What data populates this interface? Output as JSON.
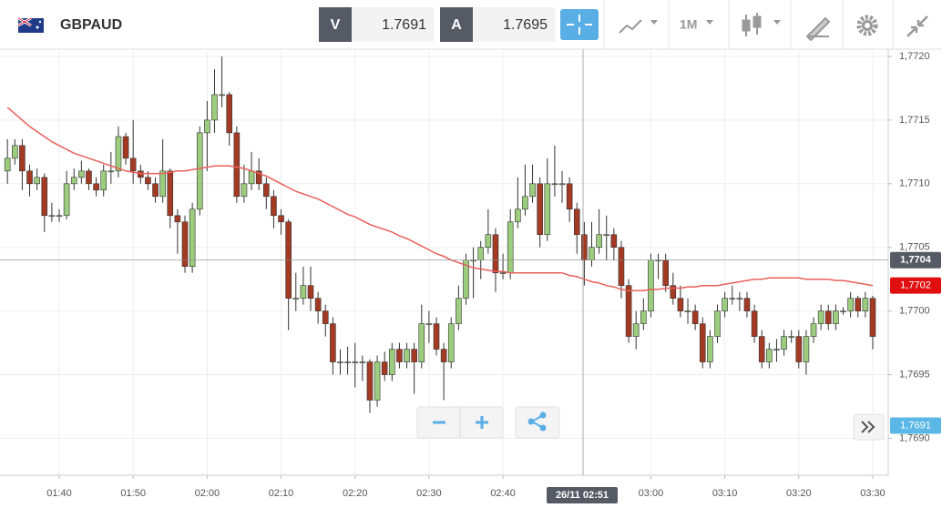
{
  "toolbar": {
    "symbol": "GBPAUD",
    "bid_label": "V",
    "bid": 1.7691,
    "ask_label": "A",
    "ask": 1.7695,
    "timeframe": "1M"
  },
  "chart_data": {
    "type": "candlestick",
    "categories": [
      null,
      null,
      null,
      null,
      null,
      null,
      null,
      "01:40",
      null,
      null,
      null,
      null,
      null,
      null,
      null,
      null,
      null,
      "01:50",
      null,
      null,
      null,
      null,
      null,
      null,
      null,
      null,
      null,
      "02:00",
      null,
      null,
      null,
      null,
      null,
      null,
      null,
      null,
      null,
      "02:10",
      null,
      null,
      null,
      null,
      null,
      null,
      null,
      null,
      null,
      "02:20",
      null,
      null,
      null,
      null,
      null,
      null,
      null,
      null,
      null,
      "02:30",
      null,
      null,
      null,
      null,
      null,
      null,
      null,
      null,
      null,
      "02:40",
      null,
      null,
      null,
      null,
      null,
      null,
      null,
      null,
      null,
      null,
      null,
      null,
      null,
      null,
      null,
      null,
      null,
      null,
      null,
      "03:00",
      null,
      null,
      null,
      null,
      null,
      null,
      null,
      null,
      null,
      "03:10",
      null,
      null,
      null,
      null,
      null,
      null,
      null,
      null,
      null,
      "03:20",
      null,
      null,
      null,
      null,
      null,
      null,
      null,
      null,
      null,
      "03:30"
    ],
    "ohlc": [
      [
        1.7711,
        1.77135,
        1.771,
        1.7712
      ],
      [
        1.7712,
        1.77135,
        1.77115,
        1.7713
      ],
      [
        1.7713,
        1.77135,
        1.77095,
        1.7711
      ],
      [
        1.7711,
        1.77115,
        1.7709,
        1.771
      ],
      [
        1.771,
        1.77112,
        1.77095,
        1.77105
      ],
      [
        1.77105,
        1.77108,
        1.77062,
        1.77075
      ],
      [
        1.77075,
        1.77085,
        1.7707,
        1.77075
      ],
      [
        1.77075,
        1.7708,
        1.7707,
        1.77075
      ],
      [
        1.77075,
        1.7711,
        1.77072,
        1.771
      ],
      [
        1.771,
        1.77112,
        1.77095,
        1.77105
      ],
      [
        1.77105,
        1.77118,
        1.771,
        1.7711
      ],
      [
        1.7711,
        1.77112,
        1.77095,
        1.771
      ],
      [
        1.771,
        1.77105,
        1.7709,
        1.77095
      ],
      [
        1.77095,
        1.77115,
        1.7709,
        1.7711
      ],
      [
        1.7711,
        1.77125,
        1.771,
        1.7711
      ],
      [
        1.7711,
        1.77145,
        1.77105,
        1.77137
      ],
      [
        1.77137,
        1.7714,
        1.77115,
        1.7712
      ],
      [
        1.7712,
        1.7715,
        1.771,
        1.7711
      ],
      [
        1.7711,
        1.77115,
        1.771,
        1.77105
      ],
      [
        1.77105,
        1.7711,
        1.77095,
        1.771
      ],
      [
        1.771,
        1.77105,
        1.77085,
        1.7709
      ],
      [
        1.7709,
        1.77135,
        1.77085,
        1.7711
      ],
      [
        1.7711,
        1.77112,
        1.77065,
        1.77075
      ],
      [
        1.77075,
        1.7708,
        1.77045,
        1.7707
      ],
      [
        1.7707,
        1.77075,
        1.7703,
        1.77035
      ],
      [
        1.77035,
        1.77085,
        1.7703,
        1.7708
      ],
      [
        1.7708,
        1.77145,
        1.77075,
        1.7714
      ],
      [
        1.7714,
        1.77165,
        1.7711,
        1.7715
      ],
      [
        1.7715,
        1.7719,
        1.7714,
        1.7717
      ],
      [
        1.7717,
        1.772,
        1.7716,
        1.7717
      ],
      [
        1.7717,
        1.77172,
        1.7713,
        1.7714
      ],
      [
        1.7714,
        1.77145,
        1.77085,
        1.7709
      ],
      [
        1.7709,
        1.77115,
        1.77085,
        1.771
      ],
      [
        1.771,
        1.77125,
        1.77095,
        1.7711
      ],
      [
        1.7711,
        1.7712,
        1.77095,
        1.771
      ],
      [
        1.771,
        1.77105,
        1.7708,
        1.7709
      ],
      [
        1.7709,
        1.77095,
        1.77065,
        1.77075
      ],
      [
        1.77075,
        1.7708,
        1.7706,
        1.7707
      ],
      [
        1.7707,
        1.77072,
        1.76985,
        1.7701
      ],
      [
        1.7701,
        1.7703,
        1.77,
        1.7701
      ],
      [
        1.7701,
        1.77035,
        1.77005,
        1.7702
      ],
      [
        1.7702,
        1.77035,
        1.77,
        1.7701
      ],
      [
        1.7701,
        1.77015,
        1.7699,
        1.77
      ],
      [
        1.77,
        1.77005,
        1.7698,
        1.7699
      ],
      [
        1.7699,
        1.76995,
        1.7695,
        1.7696
      ],
      [
        1.7696,
        1.7697,
        1.7695,
        1.7696
      ],
      [
        1.7696,
        1.76972,
        1.7695,
        1.7696
      ],
      [
        1.7696,
        1.76975,
        1.7694,
        1.7696
      ],
      [
        1.7696,
        1.76965,
        1.76945,
        1.7696
      ],
      [
        1.7696,
        1.76962,
        1.7692,
        1.7693
      ],
      [
        1.7693,
        1.76965,
        1.76925,
        1.7696
      ],
      [
        1.7696,
        1.76968,
        1.76945,
        1.7695
      ],
      [
        1.7695,
        1.76975,
        1.76945,
        1.7697
      ],
      [
        1.7697,
        1.76975,
        1.76955,
        1.7696
      ],
      [
        1.7696,
        1.76975,
        1.76955,
        1.7697
      ],
      [
        1.7697,
        1.76975,
        1.76935,
        1.7696
      ],
      [
        1.7696,
        1.77005,
        1.76955,
        1.7699
      ],
      [
        1.7699,
        1.77,
        1.76975,
        1.7699
      ],
      [
        1.7699,
        1.76995,
        1.76965,
        1.7697
      ],
      [
        1.7697,
        1.76975,
        1.7693,
        1.7696
      ],
      [
        1.7696,
        1.76995,
        1.76955,
        1.7699
      ],
      [
        1.7699,
        1.7702,
        1.76985,
        1.7701
      ],
      [
        1.7701,
        1.77045,
        1.77005,
        1.7704
      ],
      [
        1.7704,
        1.7705,
        1.7701,
        1.7704
      ],
      [
        1.7704,
        1.77055,
        1.77025,
        1.7705
      ],
      [
        1.7705,
        1.7708,
        1.77045,
        1.7706
      ],
      [
        1.7706,
        1.77065,
        1.77015,
        1.7703
      ],
      [
        1.7703,
        1.77045,
        1.77025,
        1.7703
      ],
      [
        1.7703,
        1.7708,
        1.77025,
        1.7707
      ],
      [
        1.7707,
        1.77105,
        1.77065,
        1.7708
      ],
      [
        1.7708,
        1.77115,
        1.77075,
        1.7709
      ],
      [
        1.7709,
        1.77115,
        1.77085,
        1.771
      ],
      [
        1.771,
        1.77105,
        1.7705,
        1.7706
      ],
      [
        1.7706,
        1.7712,
        1.77055,
        1.771
      ],
      [
        1.771,
        1.7713,
        1.7709,
        1.771
      ],
      [
        1.771,
        1.7711,
        1.77085,
        1.771
      ],
      [
        1.771,
        1.77105,
        1.7707,
        1.7708
      ],
      [
        1.7708,
        1.77085,
        1.77045,
        1.7706
      ],
      [
        1.7706,
        1.7707,
        1.7702,
        1.7704
      ],
      [
        1.7704,
        1.7707,
        1.77035,
        1.7705
      ],
      [
        1.7705,
        1.7708,
        1.77045,
        1.7706
      ],
      [
        1.7706,
        1.77075,
        1.7704,
        1.7706
      ],
      [
        1.7706,
        1.77065,
        1.7704,
        1.7705
      ],
      [
        1.7705,
        1.77055,
        1.7701,
        1.7702
      ],
      [
        1.7702,
        1.77025,
        1.76975,
        1.7698
      ],
      [
        1.7698,
        1.77,
        1.7697,
        1.7699
      ],
      [
        1.7699,
        1.7701,
        1.76985,
        1.77
      ],
      [
        1.77,
        1.77045,
        1.76995,
        1.7704
      ],
      [
        1.7704,
        1.77045,
        1.77025,
        1.7704
      ],
      [
        1.7704,
        1.77045,
        1.77015,
        1.7702
      ],
      [
        1.7702,
        1.7703,
        1.77005,
        1.7701
      ],
      [
        1.7701,
        1.7702,
        1.76995,
        1.77
      ],
      [
        1.77,
        1.7701,
        1.7699,
        1.77
      ],
      [
        1.77,
        1.77005,
        1.76985,
        1.7699
      ],
      [
        1.7699,
        1.76995,
        1.76955,
        1.7696
      ],
      [
        1.7696,
        1.76985,
        1.76955,
        1.7698
      ],
      [
        1.7698,
        1.77005,
        1.76975,
        1.77
      ],
      [
        1.77,
        1.77015,
        1.76995,
        1.7701
      ],
      [
        1.7701,
        1.7702,
        1.77005,
        1.7701
      ],
      [
        1.7701,
        1.77015,
        1.77,
        1.7701
      ],
      [
        1.7701,
        1.77015,
        1.76995,
        1.77
      ],
      [
        1.77,
        1.77005,
        1.76975,
        1.7698
      ],
      [
        1.7698,
        1.76985,
        1.76955,
        1.7696
      ],
      [
        1.7696,
        1.76975,
        1.76955,
        1.7697
      ],
      [
        1.7697,
        1.76978,
        1.7696,
        1.7697
      ],
      [
        1.7697,
        1.76985,
        1.76965,
        1.7698
      ],
      [
        1.7698,
        1.76985,
        1.76975,
        1.7698
      ],
      [
        1.7698,
        1.76985,
        1.76955,
        1.7696
      ],
      [
        1.7696,
        1.76985,
        1.7695,
        1.7698
      ],
      [
        1.7698,
        1.76995,
        1.76975,
        1.7699
      ],
      [
        1.7699,
        1.77005,
        1.76985,
        1.77
      ],
      [
        1.77,
        1.77005,
        1.76985,
        1.7699
      ],
      [
        1.7699,
        1.77005,
        1.76985,
        1.77
      ],
      [
        1.77,
        1.77003,
        1.76997,
        1.77
      ],
      [
        1.77,
        1.77015,
        1.76995,
        1.7701
      ],
      [
        1.7701,
        1.77012,
        1.76995,
        1.77
      ],
      [
        1.77,
        1.77015,
        1.76995,
        1.7701
      ],
      [
        1.7701,
        1.77012,
        1.7697,
        1.7698
      ]
    ],
    "up_color": "#9ccc7e",
    "down_color": "#a33a24",
    "ma": {
      "color": "#e8605a",
      "values": [
        1.7716,
        1.77155,
        1.7715,
        1.77145,
        1.77141,
        1.77137,
        1.77133,
        1.7713,
        1.77127,
        1.77124,
        1.77122,
        1.7712,
        1.77118,
        1.77116,
        1.77114,
        1.77112,
        1.7711,
        1.77109,
        1.77108,
        1.77108,
        1.77108,
        1.77108,
        1.77109,
        1.7711,
        1.7711,
        1.77111,
        1.77112,
        1.77113,
        1.77114,
        1.77114,
        1.77114,
        1.77113,
        1.77112,
        1.7711,
        1.77108,
        1.77106,
        1.77103,
        1.771,
        1.77097,
        1.77094,
        1.77092,
        1.7709,
        1.77088,
        1.77085,
        1.77082,
        1.77079,
        1.77076,
        1.77074,
        1.77071,
        1.77068,
        1.77066,
        1.77064,
        1.77062,
        1.77059,
        1.77057,
        1.77054,
        1.77051,
        1.77048,
        1.77045,
        1.77043,
        1.7704,
        1.77038,
        1.77036,
        1.77034,
        1.77033,
        1.77032,
        1.77031,
        1.77031,
        1.7703,
        1.7703,
        1.7703,
        1.7703,
        1.7703,
        1.7703,
        1.7703,
        1.7703,
        1.77028,
        1.77027,
        1.77025,
        1.77023,
        1.77022,
        1.7702,
        1.77019,
        1.77017,
        1.77016,
        1.77016,
        1.77016,
        1.77017,
        1.77017,
        1.77018,
        1.77018,
        1.77018,
        1.77019,
        1.77019,
        1.7702,
        1.7702,
        1.7702,
        1.77021,
        1.77022,
        1.77023,
        1.77024,
        1.77025,
        1.77025,
        1.77026,
        1.77026,
        1.77026,
        1.77026,
        1.77026,
        1.77025,
        1.77025,
        1.77025,
        1.77025,
        1.77024,
        1.77024,
        1.77023,
        1.77022,
        1.77021,
        1.7702
      ]
    },
    "ylim": [
      1.76871,
      1.77205
    ],
    "yticks": [
      {
        "value": 1.772,
        "label": "1,7720"
      },
      {
        "value": 1.7715,
        "label": "1,7715"
      },
      {
        "value": 1.771,
        "label": "1,7710"
      },
      {
        "value": 1.7705,
        "label": "1,7705"
      },
      {
        "value": 1.77,
        "label": "1,7700"
      },
      {
        "value": 1.7695,
        "label": "1,7695"
      },
      {
        "value": 1.769,
        "label": "1,7690"
      }
    ],
    "grid": true,
    "price_labels": [
      {
        "value": 1.7702,
        "label": "1,7702",
        "color": "#e01010"
      },
      {
        "value": 1.7691,
        "label": "1,7691",
        "color": "#5bb8e6"
      }
    ],
    "crosshair": {
      "price": {
        "value": 1.7704,
        "label": "1,7704"
      },
      "time_label": "26/11 02:51"
    }
  }
}
